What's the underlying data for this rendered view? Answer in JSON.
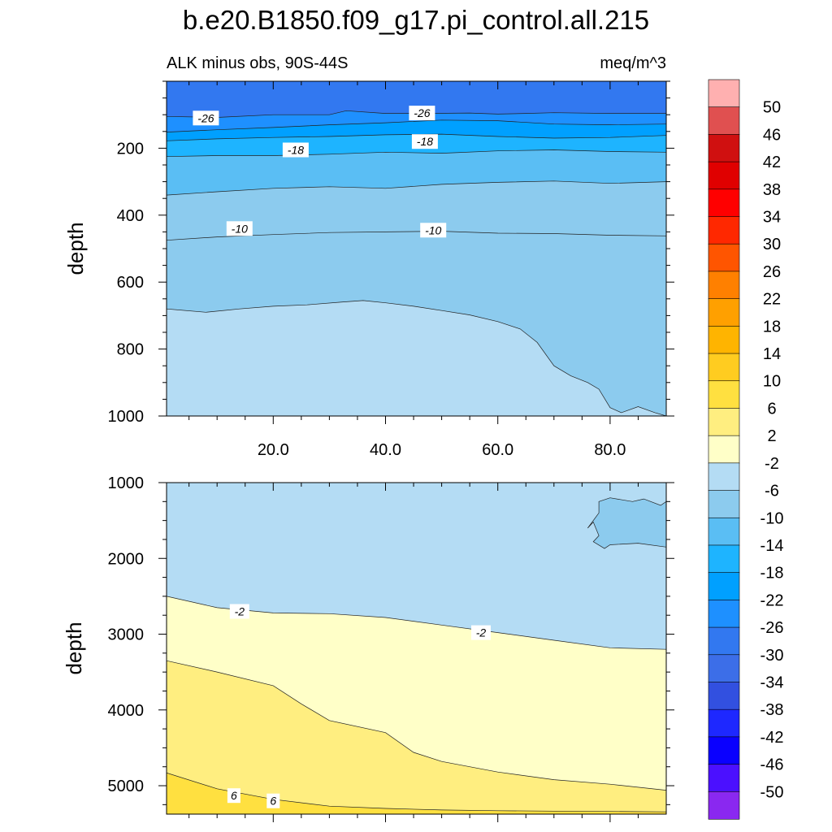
{
  "chart_data": [
    {
      "type": "heatmap",
      "name": "upper-panel",
      "title": "b.e20.B1850.f09_g17.pi_control.all.215",
      "subtitle_left": "ALK minus obs, 90S-44S",
      "subtitle_right": "meq/m^3",
      "ylabel": "depth",
      "xlabel": "",
      "xlim": [
        1,
        90
      ],
      "ylim": [
        0,
        1000
      ],
      "y_inverted": true,
      "xticks": [
        20,
        40,
        60,
        80
      ],
      "xtick_labels": [
        "20.0",
        "40.0",
        "60.0",
        "80.0"
      ],
      "yticks": [
        200,
        400,
        600,
        800,
        1000
      ],
      "ytick_labels": [
        "200",
        "400",
        "600",
        "800",
        "1000"
      ],
      "contours": [
        {
          "bounds": "-30/-26",
          "depth_at_x": [
            [
              1,
              105
            ],
            [
              10,
              108
            ],
            [
              20,
              100
            ],
            [
              30,
              100
            ],
            [
              33,
              88
            ],
            [
              40,
              96
            ],
            [
              47,
              96
            ],
            [
              55,
              95
            ],
            [
              60,
              98
            ],
            [
              65,
              96
            ],
            [
              70,
              94
            ],
            [
              80,
              96
            ],
            [
              90,
              96
            ]
          ]
        },
        {
          "bounds": "-26/-22",
          "depth_at_x": [
            [
              1,
              152
            ],
            [
              10,
              145
            ],
            [
              20,
              138
            ],
            [
              30,
              130
            ],
            [
              40,
              124
            ],
            [
              50,
              116
            ],
            [
              60,
              118
            ],
            [
              70,
              128
            ],
            [
              80,
              130
            ],
            [
              90,
              128
            ]
          ]
        },
        {
          "bounds": "-22/-18",
          "depth_at_x": [
            [
              1,
              178
            ],
            [
              10,
              172
            ],
            [
              20,
              168
            ],
            [
              30,
              165
            ],
            [
              40,
              160
            ],
            [
              50,
              158
            ],
            [
              60,
              165
            ],
            [
              70,
              170
            ],
            [
              80,
              168
            ],
            [
              90,
              162
            ]
          ]
        },
        {
          "bounds": "-18/-14",
          "depth_at_x": [
            [
              1,
              225
            ],
            [
              10,
              222
            ],
            [
              20,
              222
            ],
            [
              30,
              218
            ],
            [
              40,
              212
            ],
            [
              50,
              215
            ],
            [
              60,
              208
            ],
            [
              70,
              205
            ],
            [
              80,
              210
            ],
            [
              90,
              212
            ]
          ]
        },
        {
          "bounds": "-14/-10",
          "depth_at_x": [
            [
              1,
              340
            ],
            [
              10,
              330
            ],
            [
              20,
              320
            ],
            [
              30,
              315
            ],
            [
              40,
              320
            ],
            [
              50,
              308
            ],
            [
              60,
              302
            ],
            [
              70,
              298
            ],
            [
              80,
              305
            ],
            [
              90,
              300
            ]
          ]
        },
        {
          "bounds": "-10/-6",
          "depth_at_x": [
            [
              1,
              475
            ],
            [
              10,
              465
            ],
            [
              20,
              458
            ],
            [
              30,
              452
            ],
            [
              40,
              450
            ],
            [
              50,
              448
            ],
            [
              60,
              454
            ],
            [
              70,
              455
            ],
            [
              80,
              460
            ],
            [
              90,
              462
            ]
          ]
        },
        {
          "bounds": "-6/-2",
          "depth_at_x": [
            [
              1,
              680
            ],
            [
              8,
              690
            ],
            [
              14,
              680
            ],
            [
              20,
              672
            ],
            [
              26,
              668
            ],
            [
              32,
              660
            ],
            [
              36,
              655
            ],
            [
              40,
              662
            ],
            [
              45,
              672
            ],
            [
              50,
              685
            ],
            [
              55,
              698
            ],
            [
              60,
              718
            ],
            [
              64,
              740
            ],
            [
              67,
              780
            ],
            [
              70,
              850
            ],
            [
              73,
              880
            ],
            [
              76,
              900
            ],
            [
              78,
              920
            ],
            [
              80,
              975
            ],
            [
              82,
              990
            ],
            [
              85,
              972
            ],
            [
              88,
              990
            ],
            [
              90,
              1000
            ]
          ]
        }
      ],
      "contour_labels": [
        {
          "text": "-26",
          "x": 8,
          "y": 110
        },
        {
          "text": "-26",
          "x": 46.5,
          "y": 95
        },
        {
          "text": "-18",
          "x": 24,
          "y": 205
        },
        {
          "text": "-18",
          "x": 47,
          "y": 180
        },
        {
          "text": "-10",
          "x": 14,
          "y": 440
        },
        {
          "text": "-10",
          "x": 48.5,
          "y": 445
        }
      ]
    },
    {
      "type": "heatmap",
      "name": "lower-panel",
      "ylabel": "depth",
      "xlim": [
        1,
        90
      ],
      "ylim": [
        1000,
        5375
      ],
      "y_inverted": true,
      "yticks": [
        1000,
        2000,
        3000,
        4000,
        5000
      ],
      "ytick_labels": [
        "1000",
        "2000",
        "3000",
        "4000",
        "5000"
      ],
      "contours": [
        {
          "bounds": "-6/-2",
          "polygon": [
            [
              78,
              1250
            ],
            [
              80,
              1200
            ],
            [
              84,
              1250
            ],
            [
              86,
              1215
            ],
            [
              89,
              1300
            ],
            [
              90,
              1250
            ],
            [
              90,
              1850
            ],
            [
              85,
              1800
            ],
            [
              80,
              1820
            ],
            [
              79,
              1870
            ],
            [
              77,
              1780
            ],
            [
              78,
              1700
            ],
            [
              77,
              1520
            ],
            [
              76,
              1600
            ],
            [
              78,
              1400
            ]
          ]
        },
        {
          "bounds": "-2/2",
          "depth_at_x": [
            [
              1,
              2500
            ],
            [
              10,
              2650
            ],
            [
              20,
              2720
            ],
            [
              30,
              2730
            ],
            [
              40,
              2780
            ],
            [
              50,
              2880
            ],
            [
              60,
              2980
            ],
            [
              70,
              3080
            ],
            [
              80,
              3180
            ],
            [
              90,
              3200
            ]
          ]
        },
        {
          "bounds": "2/6",
          "depth_at_x": [
            [
              1,
              3350
            ],
            [
              10,
              3500
            ],
            [
              20,
              3680
            ],
            [
              25,
              3920
            ],
            [
              30,
              4140
            ],
            [
              40,
              4300
            ],
            [
              45,
              4560
            ],
            [
              50,
              4680
            ],
            [
              60,
              4820
            ],
            [
              70,
              4920
            ],
            [
              80,
              4980
            ],
            [
              90,
              5060
            ]
          ]
        },
        {
          "bounds": "6/10",
          "depth_at_x": [
            [
              1,
              4830
            ],
            [
              10,
              5040
            ],
            [
              20,
              5180
            ],
            [
              30,
              5270
            ],
            [
              40,
              5300
            ],
            [
              50,
              5320
            ],
            [
              60,
              5330
            ],
            [
              70,
              5335
            ],
            [
              80,
              5340
            ],
            [
              90,
              5345
            ]
          ]
        }
      ],
      "contour_labels": [
        {
          "text": "-2",
          "x": 14,
          "y": 2700
        },
        {
          "text": "-2",
          "x": 57,
          "y": 2980
        },
        {
          "text": "6",
          "x": 13,
          "y": 5130
        },
        {
          "text": "6",
          "x": 20,
          "y": 5200
        }
      ]
    },
    {
      "type": "colorbar",
      "name": "colorbar",
      "levels": [
        "50",
        "46",
        "42",
        "38",
        "34",
        "30",
        "26",
        "22",
        "18",
        "14",
        "10",
        "6",
        "2",
        "-2",
        "-6",
        "-10",
        "-14",
        "-18",
        "-22",
        "-26",
        "-30",
        "-34",
        "-38",
        "-42",
        "-46",
        "-50"
      ],
      "colors": [
        "#ffb0b0",
        "#e05050",
        "#d01010",
        "#e00000",
        "#ff0000",
        "#ff2800",
        "#ff5500",
        "#ff8000",
        "#ffa000",
        "#ffb400",
        "#ffcc20",
        "#ffe040",
        "#ffee80",
        "#ffffc8",
        "#b4dcf4",
        "#8ccbee",
        "#5abef4",
        "#1eb4ff",
        "#00a0ff",
        "#1e90ff",
        "#3278f0",
        "#3c6ee8",
        "#3250e0",
        "#1e28ff",
        "#0a00ff",
        "#4b10ff",
        "#8a28f0"
      ]
    }
  ],
  "colors": {
    "c_lt6": "#b4dcf4",
    "c_lt10": "#8ccbee",
    "c_lt14": "#5abef4",
    "c_lt18": "#1eb4ff",
    "c_lt22": "#00a0ff",
    "c_lt26": "#1e90ff",
    "c_lt30": "#3278f0",
    "c_m2": "#b4dcf4",
    "c_p2": "#ffffc8",
    "c_p6": "#ffee80",
    "c_p10": "#ffe040"
  }
}
